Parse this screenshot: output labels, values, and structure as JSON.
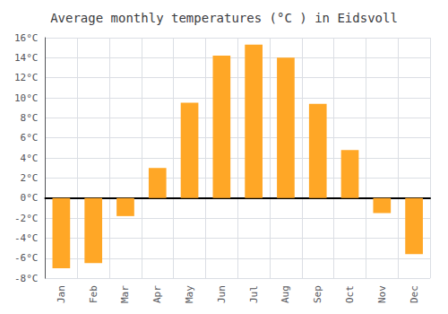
{
  "chart_data": {
    "type": "bar",
    "title": "Average monthly temperatures (°C ) in Eidsvoll",
    "categories": [
      "Jan",
      "Feb",
      "Mar",
      "Apr",
      "May",
      "Jun",
      "Jul",
      "Aug",
      "Sep",
      "Oct",
      "Nov",
      "Dec"
    ],
    "values": [
      -7.0,
      -6.5,
      -1.8,
      3.0,
      9.5,
      14.2,
      15.3,
      14.0,
      9.4,
      4.8,
      -1.5,
      -5.6
    ],
    "color": "#FFA726",
    "ylim": [
      -8,
      16
    ],
    "yticks": [
      {
        "value": -8,
        "label": "-8°C"
      },
      {
        "value": -6,
        "label": "-6°C"
      },
      {
        "value": -4,
        "label": "-4°C"
      },
      {
        "value": -2,
        "label": "-2°C"
      },
      {
        "value": 0,
        "label": "0°C"
      },
      {
        "value": 2,
        "label": "2°C"
      },
      {
        "value": 4,
        "label": "4°C"
      },
      {
        "value": 6,
        "label": "6°C"
      },
      {
        "value": 8,
        "label": "8°C"
      },
      {
        "value": 10,
        "label": "10°C"
      },
      {
        "value": 12,
        "label": "12°C"
      },
      {
        "value": 14,
        "label": "14°C"
      },
      {
        "value": 16,
        "label": "16°C"
      }
    ],
    "grid": true
  }
}
